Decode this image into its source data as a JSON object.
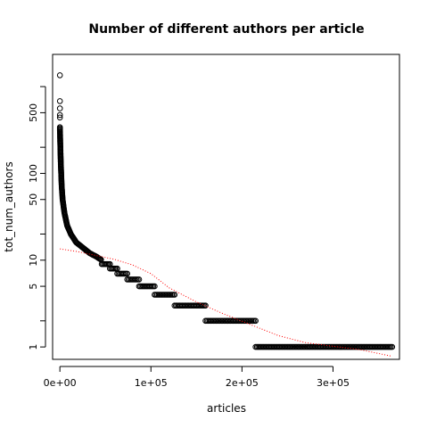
{
  "chart_data": {
    "type": "scatter",
    "title": "Number of different authors per article",
    "xlabel": "articles",
    "ylabel": "tot_num_authors",
    "y_scale": "log",
    "xlim": [
      -8000,
      373000
    ],
    "ylim": [
      0.72,
      2350
    ],
    "grid": false,
    "x_ticks": [
      {
        "value": 0,
        "label": "0e+00"
      },
      {
        "value": 100000,
        "label": "1e+05"
      },
      {
        "value": 200000,
        "label": "2e+05"
      },
      {
        "value": 300000,
        "label": "3e+05"
      }
    ],
    "y_ticks": [
      {
        "value": 1,
        "label": "1"
      },
      {
        "value": 2,
        "label": ""
      },
      {
        "value": 5,
        "label": "5"
      },
      {
        "value": 10,
        "label": "10"
      },
      {
        "value": 20,
        "label": ""
      },
      {
        "value": 50,
        "label": "50"
      },
      {
        "value": 100,
        "label": "100"
      },
      {
        "value": 200,
        "label": ""
      },
      {
        "value": 500,
        "label": "500"
      },
      {
        "value": 1000,
        "label": ""
      }
    ],
    "series": [
      {
        "style": "points",
        "color": "#000000",
        "outliers": [
          {
            "x": 0,
            "y": 1350
          },
          {
            "x": 0,
            "y": 680
          },
          {
            "x": 0,
            "y": 560
          },
          {
            "x": 0,
            "y": 470
          },
          {
            "x": 0,
            "y": 440
          }
        ],
        "curve": [
          {
            "x": 0,
            "y": 340
          },
          {
            "x": 500,
            "y": 200
          },
          {
            "x": 1000,
            "y": 130
          },
          {
            "x": 2000,
            "y": 70
          },
          {
            "x": 3000,
            "y": 50
          },
          {
            "x": 5000,
            "y": 35
          },
          {
            "x": 8000,
            "y": 25
          },
          {
            "x": 12000,
            "y": 20
          },
          {
            "x": 18000,
            "y": 16
          },
          {
            "x": 25000,
            "y": 14
          },
          {
            "x": 33000,
            "y": 12
          },
          {
            "x": 40000,
            "y": 11
          },
          {
            "x": 46000,
            "y": 10
          }
        ],
        "steps": [
          {
            "value": 9,
            "x_start": 46000,
            "x_end": 55000
          },
          {
            "value": 8,
            "x_start": 55000,
            "x_end": 63000
          },
          {
            "value": 7,
            "x_start": 63000,
            "x_end": 74000
          },
          {
            "value": 6,
            "x_start": 74000,
            "x_end": 87000
          },
          {
            "value": 5,
            "x_start": 87000,
            "x_end": 104000
          },
          {
            "value": 4,
            "x_start": 104000,
            "x_end": 126000
          },
          {
            "value": 3,
            "x_start": 126000,
            "x_end": 160000
          },
          {
            "value": 2,
            "x_start": 160000,
            "x_end": 215000
          },
          {
            "value": 1,
            "x_start": 215000,
            "x_end": 365000
          }
        ]
      },
      {
        "style": "dotted-line",
        "color": "#ff0000",
        "values": [
          {
            "x": 0,
            "y": 13.5
          },
          {
            "x": 20000,
            "y": 12.5
          },
          {
            "x": 40000,
            "y": 11.3
          },
          {
            "x": 60000,
            "y": 10.2
          },
          {
            "x": 80000,
            "y": 8.8
          },
          {
            "x": 100000,
            "y": 7.0
          },
          {
            "x": 120000,
            "y": 4.8
          },
          {
            "x": 150000,
            "y": 3.3
          },
          {
            "x": 180000,
            "y": 2.4
          },
          {
            "x": 210000,
            "y": 1.8
          },
          {
            "x": 240000,
            "y": 1.35
          },
          {
            "x": 270000,
            "y": 1.12
          },
          {
            "x": 300000,
            "y": 1.02
          },
          {
            "x": 330000,
            "y": 0.93
          },
          {
            "x": 365000,
            "y": 0.78
          }
        ]
      }
    ]
  }
}
